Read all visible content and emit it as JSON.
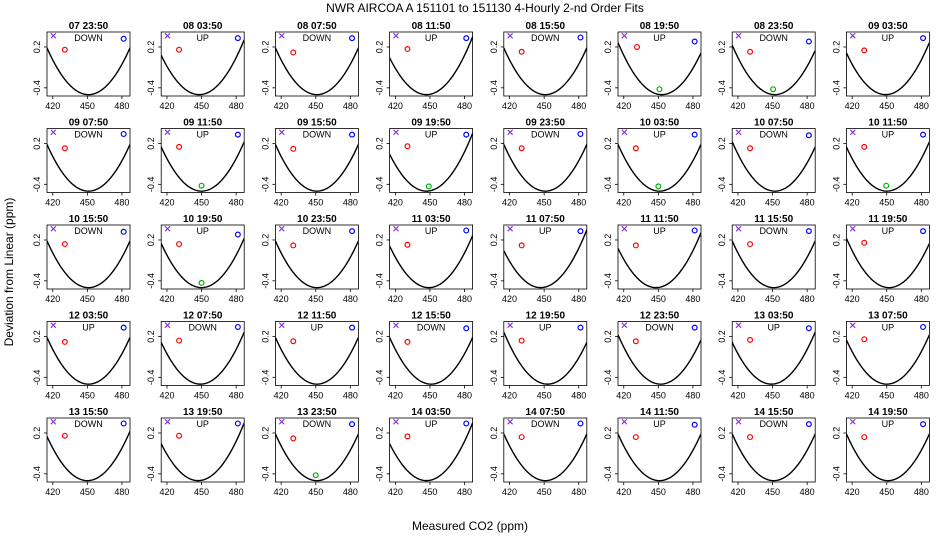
{
  "title": "NWR   AIRCOA A   151101 to 151130   4-Hourly 2-nd Order Fits",
  "xlabel": "Measured CO2 (ppm)",
  "ylabel": "Deviation from Linear (ppm)",
  "chart_data": {
    "type": "scatter",
    "layout": "small-multiples 5 rows x 8 columns, quadratic fit curve per panel",
    "xlim": [
      415,
      487
    ],
    "ylim": [
      -0.52,
      0.42
    ],
    "x_ticks": [
      420,
      450,
      480
    ],
    "y_ticks": [
      -0.4,
      0.2
    ],
    "point_colors": {
      "standard_1": "#8a2be2",
      "standard_2": "#ff0000",
      "standard_3": "#00b000",
      "standard_4": "#0000ff",
      "curve": "#000000"
    },
    "panels": [
      {
        "label": "07 23:50",
        "dir": "DOWN",
        "vertex": 451,
        "coef": 0.00053,
        "points": [
          [
            420.5,
            0.365,
            "standard_1"
          ],
          [
            430.5,
            0.16,
            "standard_2"
          ],
          [
            481.5,
            0.32,
            "standard_4"
          ]
        ]
      },
      {
        "label": "08 03:50",
        "dir": "UP",
        "vertex": 448,
        "coef": 0.00053,
        "points": [
          [
            420.5,
            0.365,
            "standard_1"
          ],
          [
            430.5,
            0.16,
            "standard_2"
          ],
          [
            481.5,
            0.33,
            "standard_4"
          ]
        ]
      },
      {
        "label": "08 07:50",
        "dir": "DOWN",
        "vertex": 451,
        "coef": 0.00053,
        "points": [
          [
            420.5,
            0.365,
            "standard_1"
          ],
          [
            430.5,
            0.12,
            "standard_2"
          ],
          [
            481.5,
            0.33,
            "standard_4"
          ]
        ]
      },
      {
        "label": "08 11:50",
        "dir": "UP",
        "vertex": 447,
        "coef": 0.00053,
        "points": [
          [
            420.5,
            0.365,
            "standard_1"
          ],
          [
            430.5,
            0.17,
            "standard_2"
          ],
          [
            481.5,
            0.33,
            "standard_4"
          ]
        ]
      },
      {
        "label": "08 15:50",
        "dir": "DOWN",
        "vertex": 451,
        "coef": 0.00053,
        "points": [
          [
            420.5,
            0.365,
            "standard_1"
          ],
          [
            430.5,
            0.13,
            "standard_2"
          ],
          [
            481.5,
            0.34,
            "standard_4"
          ]
        ]
      },
      {
        "label": "08 19:50",
        "dir": "UP",
        "vertex": 453,
        "coef": 0.00053,
        "points": [
          [
            420.5,
            0.365,
            "standard_1"
          ],
          [
            431.5,
            0.2,
            "standard_2"
          ],
          [
            451,
            -0.42,
            "standard_3"
          ],
          [
            481.5,
            0.28,
            "standard_4"
          ]
        ]
      },
      {
        "label": "08 23:50",
        "dir": "DOWN",
        "vertex": 452,
        "coef": 0.00053,
        "points": [
          [
            420.5,
            0.365,
            "standard_1"
          ],
          [
            430.5,
            0.13,
            "standard_2"
          ],
          [
            450.5,
            -0.42,
            "standard_3"
          ],
          [
            481.5,
            0.28,
            "standard_4"
          ]
        ]
      },
      {
        "label": "09 03:50",
        "dir": "UP",
        "vertex": 449,
        "coef": 0.00053,
        "points": [
          [
            420.5,
            0.365,
            "standard_1"
          ],
          [
            430.5,
            0.15,
            "standard_2"
          ],
          [
            481.5,
            0.33,
            "standard_4"
          ]
        ]
      },
      {
        "label": "09 07:50",
        "dir": "DOWN",
        "vertex": 451,
        "coef": 0.00053,
        "points": [
          [
            420.5,
            0.365,
            "standard_1"
          ],
          [
            430.5,
            0.13,
            "standard_2"
          ],
          [
            481.5,
            0.34,
            "standard_4"
          ]
        ]
      },
      {
        "label": "09 11:50",
        "dir": "UP",
        "vertex": 450,
        "coef": 0.00053,
        "points": [
          [
            420.5,
            0.365,
            "standard_1"
          ],
          [
            430.5,
            0.15,
            "standard_2"
          ],
          [
            450,
            -0.42,
            "standard_3"
          ],
          [
            481.5,
            0.33,
            "standard_4"
          ]
        ]
      },
      {
        "label": "09 15:50",
        "dir": "DOWN",
        "vertex": 451,
        "coef": 0.00053,
        "points": [
          [
            420.5,
            0.365,
            "standard_1"
          ],
          [
            430.5,
            0.12,
            "standard_2"
          ],
          [
            481.5,
            0.33,
            "standard_4"
          ]
        ]
      },
      {
        "label": "09 19:50",
        "dir": "UP",
        "vertex": 447,
        "coef": 0.00053,
        "points": [
          [
            420.5,
            0.365,
            "standard_1"
          ],
          [
            430.5,
            0.16,
            "standard_2"
          ],
          [
            449,
            -0.43,
            "standard_3"
          ],
          [
            481.5,
            0.33,
            "standard_4"
          ]
        ]
      },
      {
        "label": "09 23:50",
        "dir": "DOWN",
        "vertex": 451,
        "coef": 0.00053,
        "points": [
          [
            420.5,
            0.365,
            "standard_1"
          ],
          [
            430.5,
            0.13,
            "standard_2"
          ],
          [
            481.5,
            0.34,
            "standard_4"
          ]
        ]
      },
      {
        "label": "10 03:50",
        "dir": "UP",
        "vertex": 451,
        "coef": 0.00053,
        "points": [
          [
            420.5,
            0.365,
            "standard_1"
          ],
          [
            430.5,
            0.13,
            "standard_2"
          ],
          [
            450,
            -0.43,
            "standard_3"
          ],
          [
            481.5,
            0.33,
            "standard_4"
          ]
        ]
      },
      {
        "label": "10 07:50",
        "dir": "DOWN",
        "vertex": 452,
        "coef": 0.00053,
        "points": [
          [
            420.5,
            0.365,
            "standard_1"
          ],
          [
            430.5,
            0.13,
            "standard_2"
          ],
          [
            481.5,
            0.32,
            "standard_4"
          ]
        ]
      },
      {
        "label": "10 11:50",
        "dir": "UP",
        "vertex": 450,
        "coef": 0.00053,
        "points": [
          [
            420.5,
            0.365,
            "standard_1"
          ],
          [
            430.5,
            0.15,
            "standard_2"
          ],
          [
            449.5,
            -0.42,
            "standard_3"
          ],
          [
            481.5,
            0.33,
            "standard_4"
          ]
        ]
      },
      {
        "label": "10 15:50",
        "dir": "DOWN",
        "vertex": 451,
        "coef": 0.00053,
        "points": [
          [
            420.5,
            0.365,
            "standard_1"
          ],
          [
            430.5,
            0.14,
            "standard_2"
          ],
          [
            481.5,
            0.32,
            "standard_4"
          ]
        ]
      },
      {
        "label": "10 19:50",
        "dir": "UP",
        "vertex": 450,
        "coef": 0.00053,
        "points": [
          [
            420.5,
            0.365,
            "standard_1"
          ],
          [
            430.5,
            0.14,
            "standard_2"
          ],
          [
            450,
            -0.43,
            "standard_3"
          ],
          [
            481.5,
            0.28,
            "standard_4"
          ]
        ]
      },
      {
        "label": "10 23:50",
        "dir": "DOWN",
        "vertex": 451,
        "coef": 0.00053,
        "points": [
          [
            420.5,
            0.365,
            "standard_1"
          ],
          [
            430.5,
            0.12,
            "standard_2"
          ],
          [
            481.5,
            0.33,
            "standard_4"
          ]
        ]
      },
      {
        "label": "11 03:50",
        "dir": "UP",
        "vertex": 449,
        "coef": 0.00053,
        "points": [
          [
            420.5,
            0.365,
            "standard_1"
          ],
          [
            430.5,
            0.13,
            "standard_2"
          ],
          [
            481.5,
            0.34,
            "standard_4"
          ]
        ]
      },
      {
        "label": "11 07:50",
        "dir": "UP",
        "vertex": 447,
        "coef": 0.00053,
        "points": [
          [
            420.5,
            0.365,
            "standard_1"
          ],
          [
            430.5,
            0.12,
            "standard_2"
          ],
          [
            481.5,
            0.33,
            "standard_4"
          ]
        ]
      },
      {
        "label": "11 11:50",
        "dir": "UP",
        "vertex": 448,
        "coef": 0.00053,
        "points": [
          [
            420.5,
            0.365,
            "standard_1"
          ],
          [
            430.5,
            0.12,
            "standard_2"
          ],
          [
            481.5,
            0.34,
            "standard_4"
          ]
        ]
      },
      {
        "label": "11 15:50",
        "dir": "DOWN",
        "vertex": 451,
        "coef": 0.00053,
        "points": [
          [
            420.5,
            0.365,
            "standard_1"
          ],
          [
            430.5,
            0.14,
            "standard_2"
          ],
          [
            481.5,
            0.33,
            "standard_4"
          ]
        ]
      },
      {
        "label": "11 19:50",
        "dir": "UP",
        "vertex": 452,
        "coef": 0.00053,
        "points": [
          [
            420.5,
            0.365,
            "standard_1"
          ],
          [
            430.5,
            0.16,
            "standard_2"
          ],
          [
            481.5,
            0.33,
            "standard_4"
          ]
        ]
      },
      {
        "label": "12 03:50",
        "dir": "UP",
        "vertex": 451,
        "coef": 0.00053,
        "points": [
          [
            420.5,
            0.365,
            "standard_1"
          ],
          [
            430.5,
            0.12,
            "standard_2"
          ],
          [
            481.5,
            0.33,
            "standard_4"
          ]
        ]
      },
      {
        "label": "12 07:50",
        "dir": "DOWN",
        "vertex": 449,
        "coef": 0.00053,
        "points": [
          [
            420.5,
            0.365,
            "standard_1"
          ],
          [
            430.5,
            0.14,
            "standard_2"
          ],
          [
            481.5,
            0.34,
            "standard_4"
          ]
        ]
      },
      {
        "label": "12 11:50",
        "dir": "UP",
        "vertex": 451,
        "coef": 0.00053,
        "points": [
          [
            420.5,
            0.365,
            "standard_1"
          ],
          [
            430.5,
            0.13,
            "standard_2"
          ],
          [
            481.5,
            0.33,
            "standard_4"
          ]
        ]
      },
      {
        "label": "12 15:50",
        "dir": "DOWN",
        "vertex": 451,
        "coef": 0.00053,
        "points": [
          [
            420.5,
            0.365,
            "standard_1"
          ],
          [
            430.5,
            0.12,
            "standard_2"
          ],
          [
            481.5,
            0.32,
            "standard_4"
          ]
        ]
      },
      {
        "label": "12 19:50",
        "dir": "UP",
        "vertex": 453,
        "coef": 0.00053,
        "points": [
          [
            420.5,
            0.365,
            "standard_1"
          ],
          [
            430.5,
            0.14,
            "standard_2"
          ],
          [
            481.5,
            0.33,
            "standard_4"
          ]
        ]
      },
      {
        "label": "12 23:50",
        "dir": "DOWN",
        "vertex": 452,
        "coef": 0.00053,
        "points": [
          [
            420.5,
            0.365,
            "standard_1"
          ],
          [
            430.5,
            0.13,
            "standard_2"
          ],
          [
            481.5,
            0.33,
            "standard_4"
          ]
        ]
      },
      {
        "label": "13 03:50",
        "dir": "UP",
        "vertex": 449,
        "coef": 0.00053,
        "points": [
          [
            420.5,
            0.365,
            "standard_1"
          ],
          [
            430.5,
            0.15,
            "standard_2"
          ],
          [
            481.5,
            0.32,
            "standard_4"
          ]
        ]
      },
      {
        "label": "13 07:50",
        "dir": "UP",
        "vertex": 450,
        "coef": 0.00053,
        "points": [
          [
            420.5,
            0.365,
            "standard_1"
          ],
          [
            430.5,
            0.16,
            "standard_2"
          ],
          [
            481.5,
            0.34,
            "standard_4"
          ]
        ]
      },
      {
        "label": "13 15:50",
        "dir": "DOWN",
        "vertex": 450,
        "coef": 0.00053,
        "points": [
          [
            420.5,
            0.365,
            "standard_1"
          ],
          [
            430.5,
            0.16,
            "standard_2"
          ],
          [
            481.5,
            0.34,
            "standard_4"
          ]
        ]
      },
      {
        "label": "13 19:50",
        "dir": "UP",
        "vertex": 447,
        "coef": 0.00053,
        "points": [
          [
            420.5,
            0.365,
            "standard_1"
          ],
          [
            430.5,
            0.16,
            "standard_2"
          ],
          [
            481.5,
            0.34,
            "standard_4"
          ]
        ]
      },
      {
        "label": "13 23:50",
        "dir": "DOWN",
        "vertex": 451,
        "coef": 0.00053,
        "points": [
          [
            420.5,
            0.365,
            "standard_1"
          ],
          [
            430.5,
            0.12,
            "standard_2"
          ],
          [
            450,
            -0.42,
            "standard_3"
          ],
          [
            481.5,
            0.33,
            "standard_4"
          ]
        ]
      },
      {
        "label": "14 03:50",
        "dir": "UP",
        "vertex": 447,
        "coef": 0.00053,
        "points": [
          [
            420.5,
            0.365,
            "standard_1"
          ],
          [
            430.5,
            0.15,
            "standard_2"
          ],
          [
            481.5,
            0.34,
            "standard_4"
          ]
        ]
      },
      {
        "label": "14 07:50",
        "dir": "DOWN",
        "vertex": 451,
        "coef": 0.00053,
        "points": [
          [
            420.5,
            0.365,
            "standard_1"
          ],
          [
            430.5,
            0.14,
            "standard_2"
          ],
          [
            481.5,
            0.34,
            "standard_4"
          ]
        ]
      },
      {
        "label": "14 11:50",
        "dir": "UP",
        "vertex": 451,
        "coef": 0.00053,
        "points": [
          [
            420.5,
            0.365,
            "standard_1"
          ],
          [
            430.5,
            0.14,
            "standard_2"
          ],
          [
            481.5,
            0.32,
            "standard_4"
          ]
        ]
      },
      {
        "label": "14 15:50",
        "dir": "DOWN",
        "vertex": 451,
        "coef": 0.00053,
        "points": [
          [
            420.5,
            0.365,
            "standard_1"
          ],
          [
            430.5,
            0.14,
            "standard_2"
          ],
          [
            481.5,
            0.33,
            "standard_4"
          ]
        ]
      },
      {
        "label": "14 19:50",
        "dir": "UP",
        "vertex": 451,
        "coef": 0.00053,
        "points": [
          [
            420.5,
            0.365,
            "standard_1"
          ],
          [
            430.5,
            0.14,
            "standard_2"
          ],
          [
            481.5,
            0.33,
            "standard_4"
          ]
        ]
      }
    ]
  }
}
